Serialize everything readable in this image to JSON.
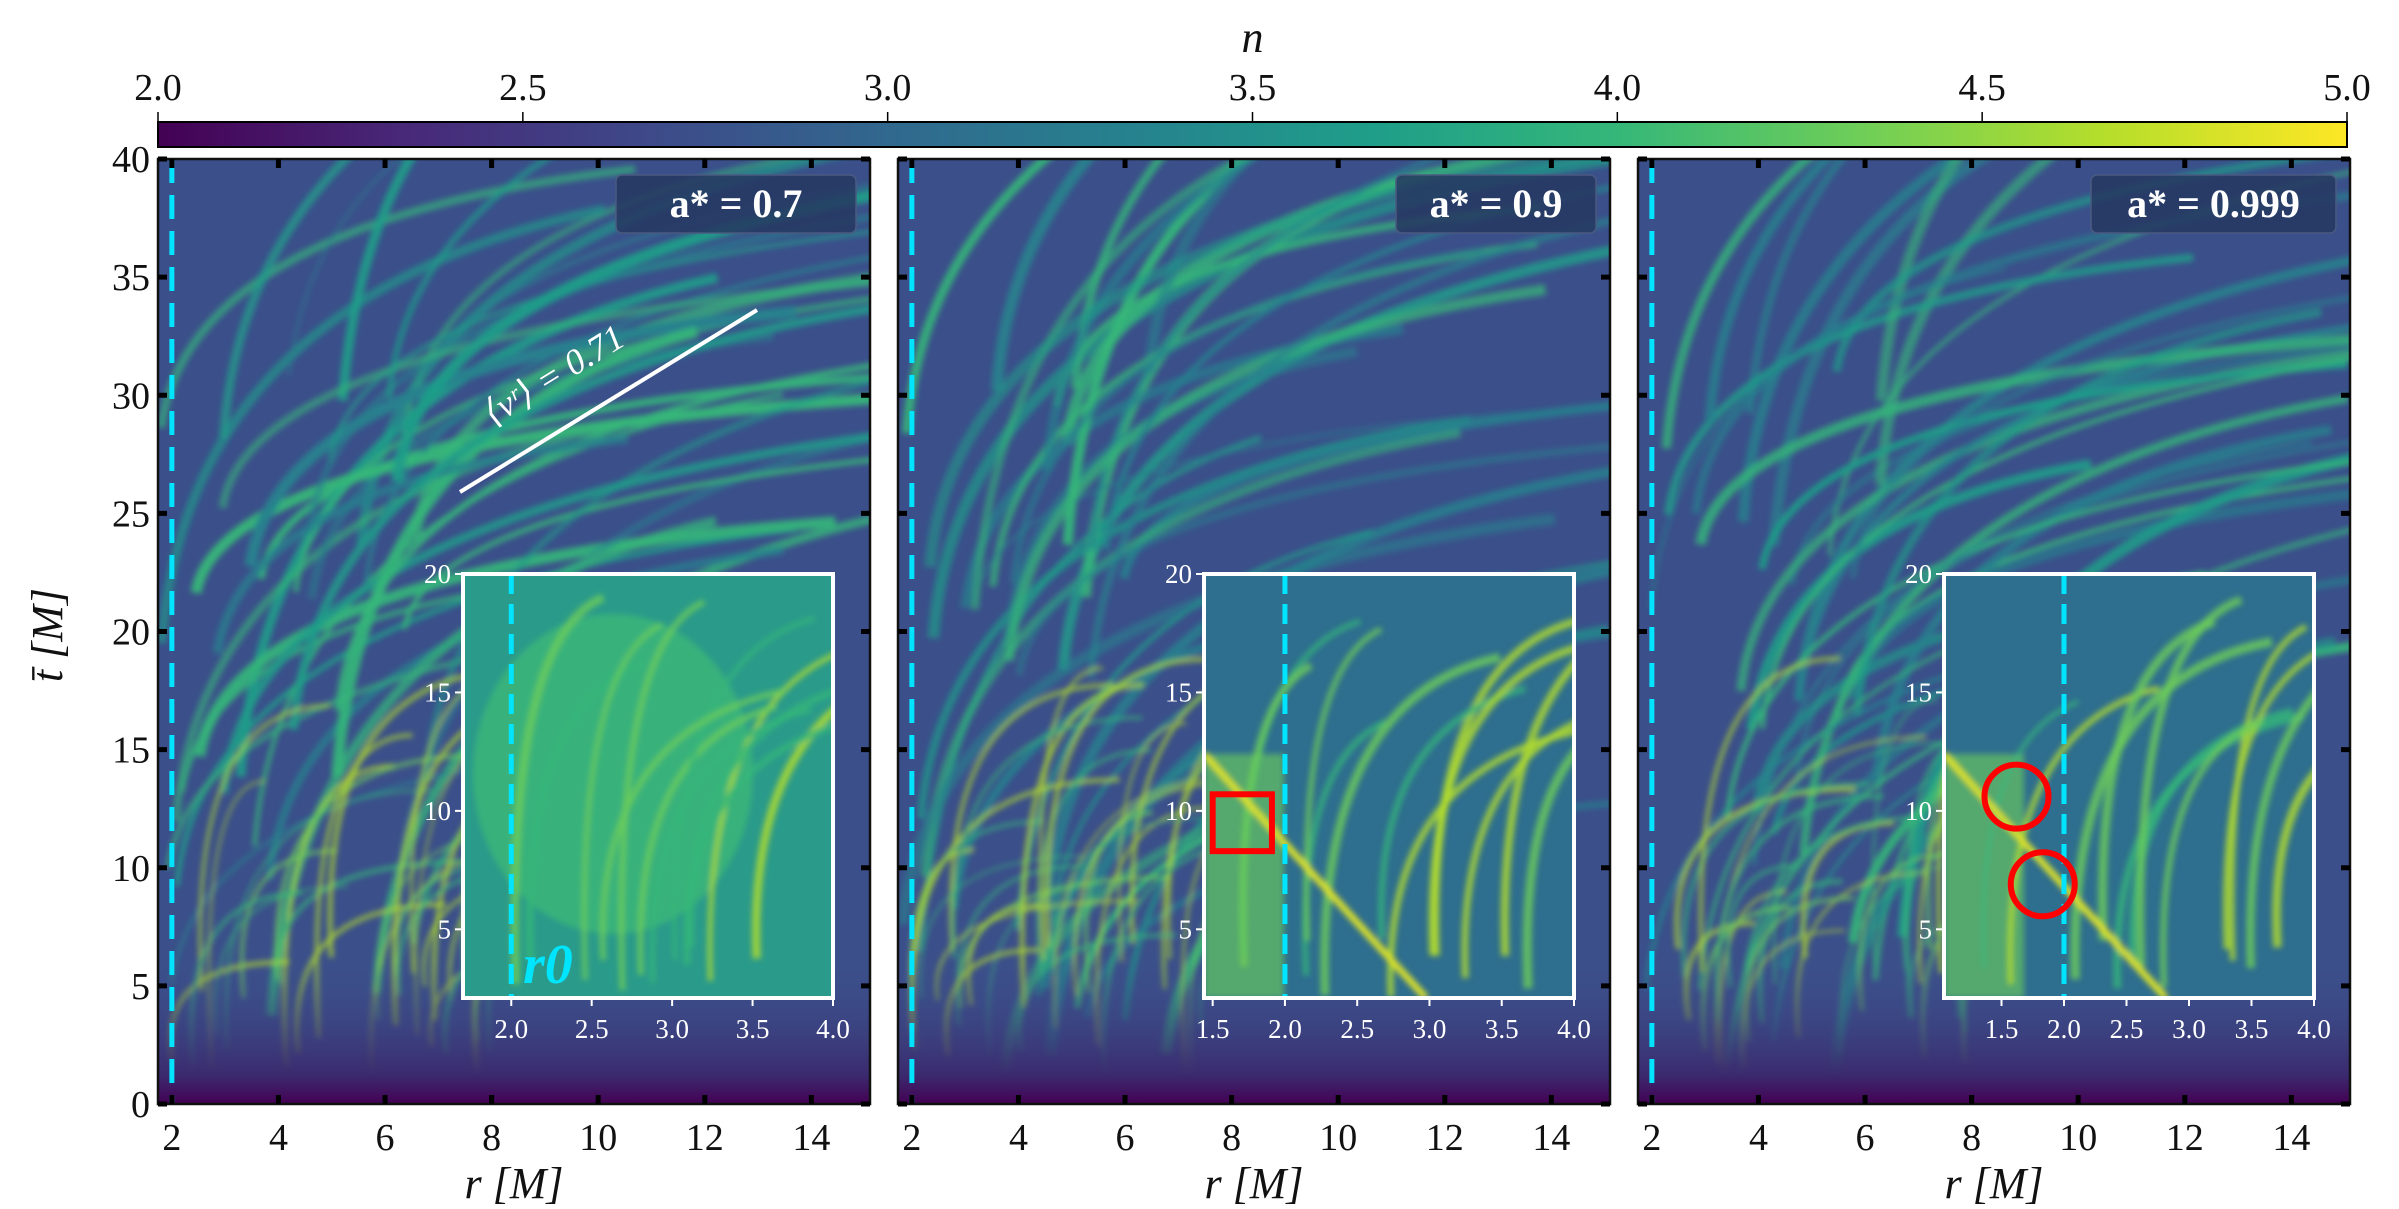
{
  "chart_data": {
    "type": "heatmap",
    "colorbar": {
      "label": "n",
      "range": [
        2.0,
        5.0
      ],
      "ticks": [
        "2.0",
        "2.5",
        "3.0",
        "3.5",
        "4.0",
        "4.5",
        "5.0"
      ],
      "colormap": [
        "#440154",
        "#482878",
        "#3e4989",
        "#31688e",
        "#26828e",
        "#1f9e89",
        "#35b779",
        "#6ece58",
        "#b5de2b",
        "#fde725"
      ],
      "placement": "top"
    },
    "shared": {
      "xlabel": "r [M]",
      "ylabel": "t̄ [M]",
      "xlim": [
        1.74,
        15.1
      ],
      "ylim": [
        0,
        40
      ],
      "xticks": [
        "2",
        "4",
        "6",
        "8",
        "10",
        "12",
        "14"
      ],
      "yticks": [
        "0",
        "5",
        "10",
        "15",
        "20",
        "25",
        "30",
        "35",
        "40"
      ],
      "marker_line": {
        "r": 2.0,
        "color": "#00e5ff",
        "style": "dashed"
      }
    },
    "panels": [
      {
        "label": "a* = 0.7",
        "annotation": "⟨vʳ⟩ = 0.71",
        "inset": {
          "xlim": [
            1.7,
            4.0
          ],
          "ylim": [
            2.1,
            20
          ],
          "xticks": [
            "2.0",
            "2.5",
            "3.0",
            "3.5",
            "4.0"
          ],
          "yticks": [
            "5",
            "10",
            "15",
            "20"
          ],
          "marker_line_r": 2.0,
          "label": "r0",
          "markers": []
        }
      },
      {
        "label": "a* = 0.9",
        "inset": {
          "xlim": [
            1.44,
            4.0
          ],
          "ylim": [
            2.1,
            20
          ],
          "xticks": [
            "1.5",
            "2.0",
            "2.5",
            "3.0",
            "3.5",
            "4.0"
          ],
          "yticks": [
            "5",
            "10",
            "15",
            "20"
          ],
          "marker_line_r": 2.0,
          "markers": [
            {
              "shape": "square",
              "r": [
                1.5,
                1.91
              ],
              "t": [
                8.3,
                10.7
              ],
              "color": "#ff0000"
            }
          ]
        }
      },
      {
        "label": "a* = 0.999",
        "inset": {
          "xlim": [
            1.04,
            4.0
          ],
          "ylim": [
            2.1,
            20
          ],
          "xticks": [
            "1.5",
            "2.0",
            "2.5",
            "3.0",
            "3.5",
            "4.0"
          ],
          "yticks": [
            "5",
            "10",
            "15",
            "20"
          ],
          "marker_line_r": 2.0,
          "markers": [
            {
              "shape": "circle",
              "r": 1.62,
              "t": 10.6,
              "color": "#ff0000"
            },
            {
              "shape": "circle",
              "r": 1.83,
              "t": 6.9,
              "color": "#ff0000"
            }
          ]
        }
      }
    ]
  }
}
